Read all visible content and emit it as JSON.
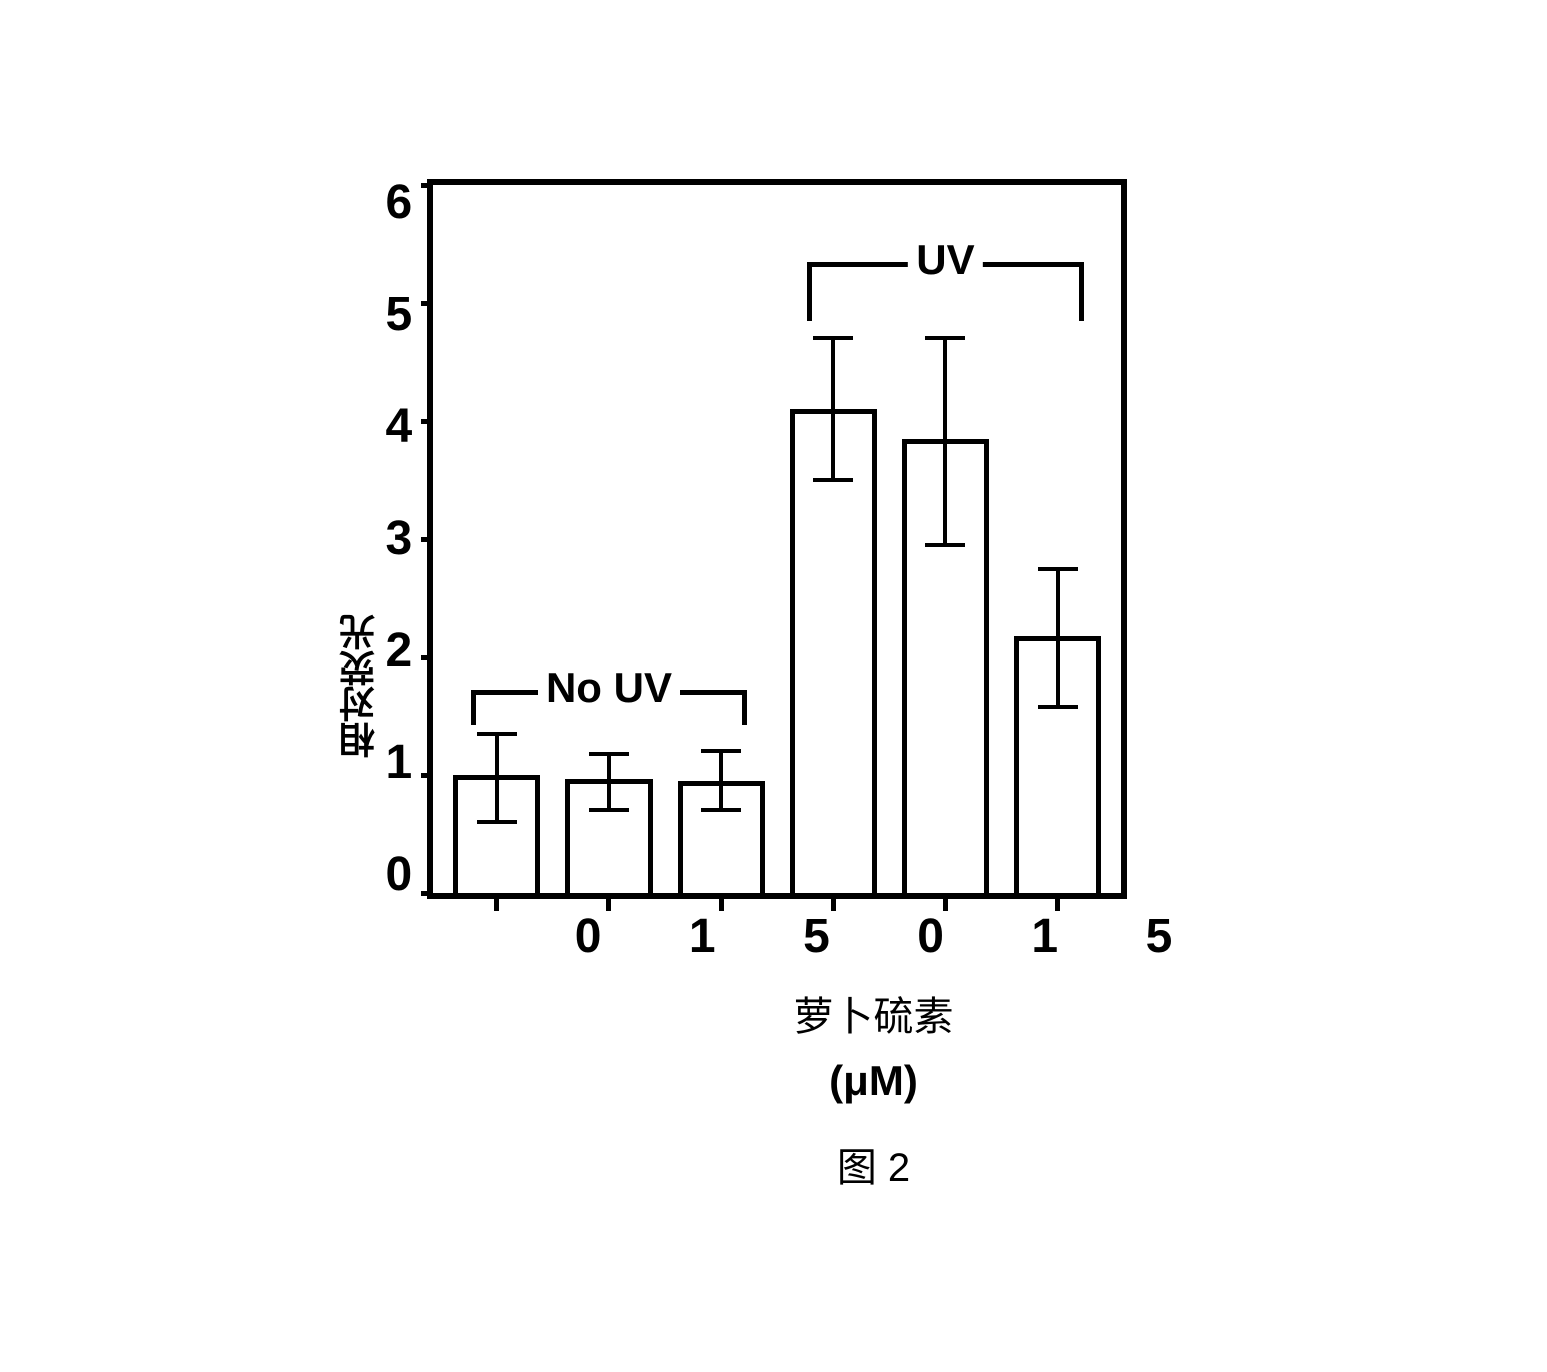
{
  "chart": {
    "type": "bar",
    "y_axis_label": "相对荧光",
    "x_axis_label": "萝卜硫素",
    "x_axis_unit": "(μM)",
    "figure_caption": "图 2",
    "ylim": [
      0,
      6
    ],
    "y_ticks": [
      "0",
      "1",
      "2",
      "3",
      "4",
      "5",
      "6"
    ],
    "y_tick_values": [
      0,
      1,
      2,
      3,
      4,
      5,
      6
    ],
    "groups": [
      {
        "label": "No UV",
        "bars": [
          {
            "x_label": "0",
            "value": 1.0,
            "error_low": 0.6,
            "error_high": 1.35
          },
          {
            "x_label": "1",
            "value": 0.97,
            "error_low": 0.7,
            "error_high": 1.18
          },
          {
            "x_label": "5",
            "value": 0.95,
            "error_low": 0.7,
            "error_high": 1.2
          }
        ]
      },
      {
        "label": "UV",
        "bars": [
          {
            "x_label": "0",
            "value": 4.1,
            "error_low": 3.5,
            "error_high": 4.7
          },
          {
            "x_label": "1",
            "value": 3.85,
            "error_low": 2.95,
            "error_high": 4.7
          },
          {
            "x_label": "5",
            "value": 2.18,
            "error_low": 1.58,
            "error_high": 2.75
          }
        ]
      }
    ],
    "colors": {
      "bar_fill": "#ffffff",
      "bar_border": "#000000",
      "background": "#ffffff",
      "axis": "#000000",
      "error_bar": "#000000",
      "text": "#000000"
    },
    "styling": {
      "border_width": 6,
      "bar_border_width": 5,
      "error_bar_width": 4,
      "error_cap_width": 40,
      "title_fontsize": 48,
      "label_fontsize": 40,
      "tick_fontsize": 48,
      "bracket_label_fontsize": 42
    }
  }
}
